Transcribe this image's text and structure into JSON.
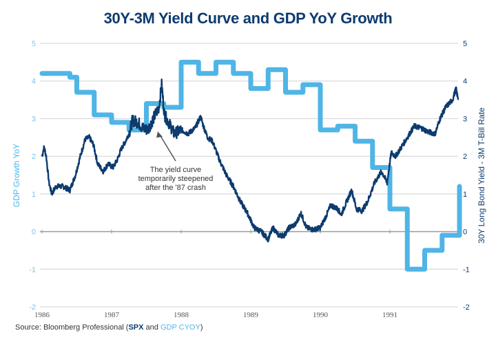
{
  "chart_data": {
    "type": "line",
    "title": "30Y-3M Yield Curve and GDP YoY Growth",
    "xlabel": "",
    "x_ticks": [
      "1986",
      "1987",
      "1988",
      "1989",
      "1990",
      "1991"
    ],
    "xlim": [
      1986.0,
      1992.0
    ],
    "y_left": {
      "label": "GDP Growth YoY",
      "ticks": [
        "5",
        "4",
        "3",
        "2",
        "1",
        "0",
        "-1",
        "-2"
      ],
      "ylim": [
        -2,
        5
      ]
    },
    "y_right": {
      "label": "30Y Long Bond Yield - 3M T-Bill Rate",
      "ticks": [
        "5",
        "4",
        "3",
        "2",
        "1",
        "0",
        "-1",
        "-2"
      ],
      "ylim": [
        -2,
        5
      ]
    },
    "grid": true,
    "series": [
      {
        "name": "GDP YoY Growth (GDP CYOY)",
        "axis": "left",
        "style": "step",
        "color": "#4fb5e6",
        "x": [
          1986.0,
          1986.4,
          1986.5,
          1986.75,
          1987.0,
          1987.25,
          1987.5,
          1987.75,
          1988.0,
          1988.25,
          1988.5,
          1988.75,
          1989.0,
          1989.25,
          1989.5,
          1989.75,
          1990.0,
          1990.25,
          1990.5,
          1990.75,
          1991.0,
          1991.25,
          1991.5,
          1991.75,
          1992.0
        ],
        "values": [
          4.2,
          4.1,
          3.7,
          3.1,
          2.9,
          2.7,
          3.4,
          3.3,
          4.5,
          4.2,
          4.5,
          4.2,
          3.8,
          4.3,
          3.7,
          3.9,
          2.7,
          2.8,
          2.4,
          1.7,
          0.6,
          -1.0,
          -0.5,
          -0.1,
          1.2
        ]
      },
      {
        "name": "30Y-3M Yield Spread (SPX)",
        "axis": "right",
        "style": "line",
        "color": "#0d3b6e",
        "x": [
          1986.0,
          1986.03,
          1986.06,
          1986.1,
          1986.14,
          1986.2,
          1986.3,
          1986.4,
          1986.48,
          1986.55,
          1986.62,
          1986.68,
          1986.74,
          1986.8,
          1986.88,
          1986.95,
          1987.02,
          1987.08,
          1987.14,
          1987.2,
          1987.25,
          1987.3,
          1987.38,
          1987.45,
          1987.52,
          1987.6,
          1987.68,
          1987.72,
          1987.76,
          1987.82,
          1987.9,
          1988.0,
          1988.1,
          1988.2,
          1988.28,
          1988.32,
          1988.38,
          1988.45,
          1988.55,
          1988.65,
          1988.75,
          1988.85,
          1988.95,
          1989.05,
          1989.15,
          1989.25,
          1989.32,
          1989.4,
          1989.48,
          1989.55,
          1989.65,
          1989.72,
          1989.8,
          1989.9,
          1990.0,
          1990.08,
          1990.15,
          1990.25,
          1990.3,
          1990.38,
          1990.45,
          1990.52,
          1990.6,
          1990.68,
          1990.78,
          1990.88,
          1990.96,
          1991.02,
          1991.08,
          1991.15,
          1991.25,
          1991.35,
          1991.45,
          1991.55,
          1991.65,
          1991.72,
          1991.8,
          1991.9,
          1991.95,
          1991.98
        ],
        "values": [
          2.0,
          2.25,
          2.0,
          1.3,
          1.0,
          1.2,
          1.2,
          1.1,
          1.5,
          2.0,
          2.45,
          2.5,
          2.3,
          1.8,
          1.6,
          1.8,
          1.7,
          1.9,
          2.2,
          2.4,
          2.6,
          2.95,
          2.9,
          2.75,
          2.7,
          3.0,
          3.3,
          3.9,
          3.1,
          2.9,
          2.6,
          2.7,
          2.6,
          2.75,
          3.05,
          2.8,
          2.5,
          2.4,
          1.9,
          1.5,
          1.2,
          0.8,
          0.5,
          0.1,
          0.0,
          -0.2,
          0.1,
          -0.1,
          -0.1,
          0.1,
          0.2,
          0.5,
          0.1,
          0.05,
          0.1,
          0.4,
          0.7,
          0.6,
          0.45,
          0.8,
          1.1,
          0.6,
          0.55,
          0.8,
          1.3,
          1.6,
          1.3,
          2.1,
          2.0,
          2.2,
          2.5,
          2.8,
          2.75,
          2.65,
          2.6,
          3.0,
          3.3,
          3.5,
          3.8,
          3.5
        ]
      }
    ],
    "annotations": [
      {
        "text": "The yield curve temporarily steepened after the '87 crash",
        "lines": [
          "The yield curve",
          "temporarily steepened",
          "after the '87 crash"
        ],
        "points_to": {
          "x": 1987.7,
          "y": 2.6
        }
      }
    ]
  },
  "source": {
    "prefix": "Source: Bloomberg Professional (",
    "ticker1": "SPX",
    "mid": " and ",
    "ticker2": "GDP CYOY",
    "suffix": ")"
  }
}
